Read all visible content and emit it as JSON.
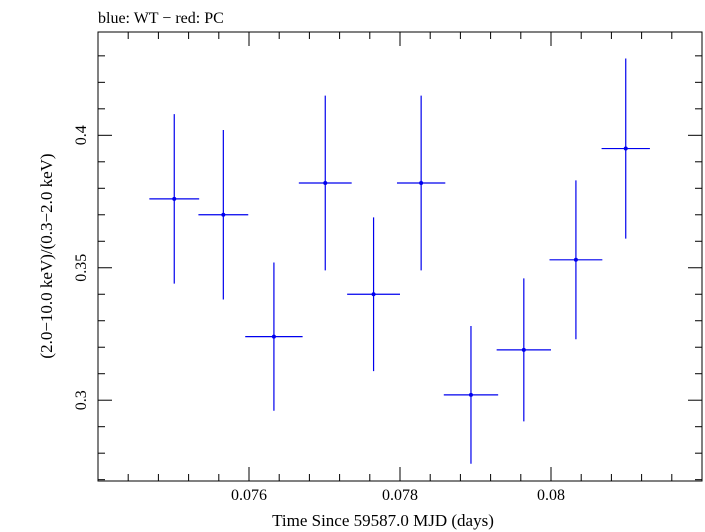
{
  "chart_data": {
    "type": "scatter",
    "title": "blue: WT − red: PC",
    "xlabel": "Time Since 59587.0 MJD (days)",
    "ylabel": "(2.0−10.0 keV)/(0.3−2.0 keV)",
    "xlim": [
      0.074,
      0.082
    ],
    "ylim": [
      0.2695,
      0.439
    ],
    "x_ticks": [
      {
        "value": 0.076,
        "label": "0.076"
      },
      {
        "value": 0.078,
        "label": "0.078"
      },
      {
        "value": 0.08,
        "label": "0.08"
      }
    ],
    "y_ticks": [
      {
        "value": 0.3,
        "label": "0.3"
      },
      {
        "value": 0.35,
        "label": "0.35"
      },
      {
        "value": 0.4,
        "label": "0.4"
      }
    ],
    "grid": false,
    "series": [
      {
        "color": "#0000ee",
        "points": [
          {
            "x": 0.07501,
            "xerr": 0.00033,
            "y": 0.376,
            "yerr": 0.032
          },
          {
            "x": 0.07566,
            "xerr": 0.00033,
            "y": 0.37,
            "yerr": 0.032
          },
          {
            "x": 0.07633,
            "xerr": 0.00038,
            "y": 0.324,
            "yerr": 0.028
          },
          {
            "x": 0.07701,
            "xerr": 0.00035,
            "y": 0.382,
            "yerr": 0.033
          },
          {
            "x": 0.07765,
            "xerr": 0.00035,
            "y": 0.34,
            "yerr": 0.029
          },
          {
            "x": 0.07828,
            "xerr": 0.00032,
            "y": 0.382,
            "yerr": 0.033
          },
          {
            "x": 0.07894,
            "xerr": 0.00036,
            "y": 0.302,
            "yerr": 0.026
          },
          {
            "x": 0.07964,
            "xerr": 0.00036,
            "y": 0.319,
            "yerr": 0.027
          },
          {
            "x": 0.08033,
            "xerr": 0.00035,
            "y": 0.353,
            "yerr": 0.03
          },
          {
            "x": 0.08099,
            "xerr": 0.00032,
            "y": 0.395,
            "yerr": 0.034
          }
        ]
      }
    ]
  }
}
